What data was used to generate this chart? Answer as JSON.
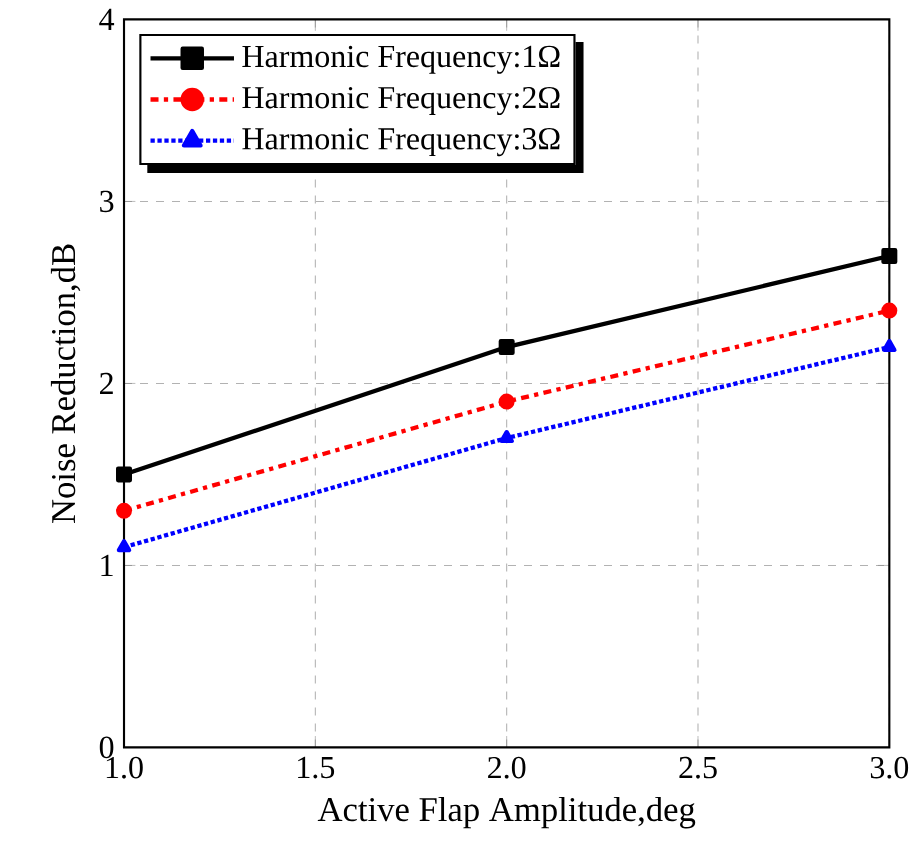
{
  "chart_data": {
    "type": "line",
    "xlabel": "Active Flap Amplitude,deg",
    "ylabel": "Noise Reduction,dB",
    "x": [
      1,
      2,
      3
    ],
    "series": [
      {
        "name": "Harmonic Frequency:1Ω",
        "color": "#000000",
        "values": [
          1.5,
          2.2,
          2.7
        ],
        "marker": "square",
        "line_style": "solid"
      },
      {
        "name": "Harmonic Frequency:2Ω",
        "color": "#ff0000",
        "values": [
          1.3,
          1.9,
          2.4
        ],
        "marker": "circle",
        "line_style": "dashdot"
      },
      {
        "name": "Harmonic Frequency:3Ω",
        "color": "#0000ff",
        "values": [
          1.1,
          1.7,
          2.2
        ],
        "marker": "triangle",
        "line_style": "dotted"
      }
    ],
    "xlim": [
      1,
      3
    ],
    "ylim": [
      0,
      4
    ],
    "xticks": [
      {
        "value": 1,
        "label": "1.0"
      },
      {
        "value": 1.5,
        "label": "1.5"
      },
      {
        "value": 2,
        "label": "2.0"
      },
      {
        "value": 2.5,
        "label": "2.5"
      },
      {
        "value": 3,
        "label": "3.0"
      }
    ],
    "yticks": [
      0,
      1,
      2,
      3,
      4
    ],
    "grid": true,
    "legend": "top left"
  }
}
